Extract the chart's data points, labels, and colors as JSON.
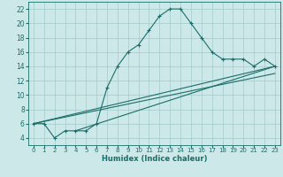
{
  "xlabel": "Humidex (Indice chaleur)",
  "bg_color": "#cce8e8",
  "grid_color": "#aacece",
  "line_color": "#1a6e6a",
  "xlim": [
    -0.5,
    23.5
  ],
  "ylim": [
    3.0,
    23.0
  ],
  "yticks": [
    4,
    6,
    8,
    10,
    12,
    14,
    16,
    18,
    20,
    22
  ],
  "xticks": [
    0,
    1,
    2,
    3,
    4,
    5,
    6,
    7,
    8,
    9,
    10,
    11,
    12,
    13,
    14,
    15,
    16,
    17,
    18,
    19,
    20,
    21,
    22,
    23
  ],
  "series1_x": [
    0,
    1,
    2,
    3,
    4,
    5,
    6,
    7,
    8,
    9,
    10,
    11,
    12,
    13,
    14,
    15,
    16,
    17,
    18,
    19,
    20,
    21,
    22,
    23
  ],
  "series1_y": [
    6,
    6,
    4,
    5,
    5,
    5,
    6,
    11,
    14,
    16,
    17,
    19,
    21,
    22,
    22,
    20,
    18,
    16,
    15,
    15,
    15,
    14,
    15,
    14
  ],
  "series2_x": [
    0,
    23
  ],
  "series2_y": [
    6,
    14
  ],
  "series3_x": [
    0,
    23
  ],
  "series3_y": [
    6,
    13
  ],
  "series4_x": [
    4,
    23
  ],
  "series4_y": [
    5,
    14
  ],
  "xlabel_fontsize": 6.0,
  "tick_fontsize": 5.0
}
